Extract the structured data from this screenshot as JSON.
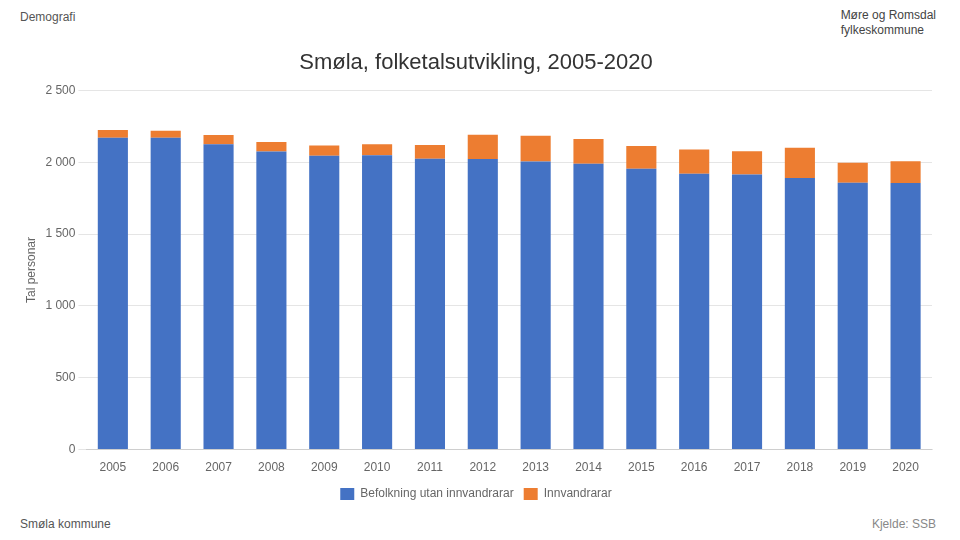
{
  "chart_data": {
    "type": "bar",
    "stacked": true,
    "title": "Smøla, folketalsutvikling, 2005-2020",
    "y_label": "Tal personar",
    "categories": [
      "2005",
      "2006",
      "2007",
      "2008",
      "2009",
      "2010",
      "2011",
      "2012",
      "2013",
      "2014",
      "2015",
      "2016",
      "2017",
      "2018",
      "2019",
      "2020"
    ],
    "series": [
      {
        "name": "Befolkning utan innvandrarar",
        "color": "#4472C4",
        "values": [
          2170,
          2170,
          2125,
          2075,
          2045,
          2048,
          2025,
          2022,
          2005,
          1990,
          1955,
          1920,
          1915,
          1890,
          1858,
          1855
        ]
      },
      {
        "name": "Innvandrarar",
        "color": "#ED7D31",
        "values": [
          55,
          50,
          65,
          65,
          72,
          78,
          95,
          170,
          180,
          172,
          158,
          168,
          162,
          210,
          138,
          152
        ]
      }
    ],
    "ylim": [
      0,
      2500
    ],
    "yticks": [
      0,
      500,
      {
        "value": 1000,
        "label": "1 000"
      },
      {
        "value": 1500,
        "label": "1 500"
      },
      {
        "value": 2000,
        "label": "2 000"
      },
      {
        "value": 2500,
        "label": "2 500"
      }
    ],
    "grid": true,
    "legend": "bottom",
    "annotations": [
      "Demografi",
      "Smøla kommune",
      "Kjelde: SSB",
      "Møre og Romsdal",
      "fylkeskommune"
    ]
  }
}
